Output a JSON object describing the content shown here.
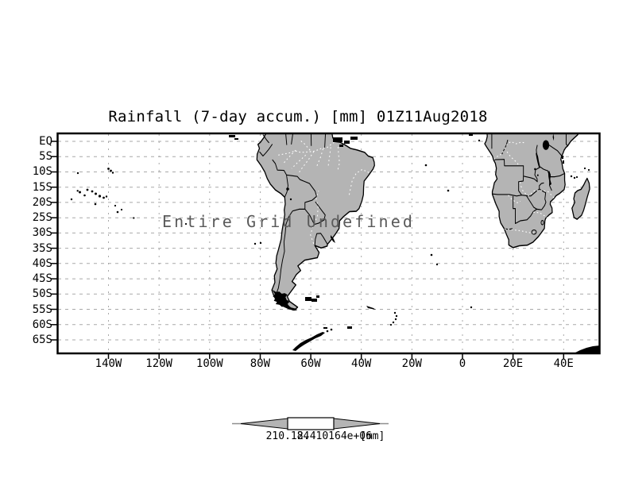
{
  "header": {
    "title": "Rainfall (7-day accum.) [mm] 01Z11Aug2018"
  },
  "map": {
    "message": "Entire Grid Undefined"
  },
  "axes": {
    "lat_labels": [
      "EQ",
      "5S",
      "10S",
      "15S",
      "20S",
      "25S",
      "30S",
      "35S",
      "40S",
      "45S",
      "50S",
      "55S",
      "60S",
      "65S"
    ],
    "lon_labels": [
      "140W",
      "120W",
      "100W",
      "80W",
      "60W",
      "40W",
      "20W",
      "0",
      "20E",
      "40E"
    ]
  },
  "colorbar": {
    "left_label": "210.184",
    "right_label": "2.410164e+06",
    "unit": "[mm]"
  },
  "colors": {
    "land": "#b4b4b4",
    "gridline": "#a9a9a9",
    "frame": "#000000",
    "message_text": "#5a5a5a",
    "background": "#ffffff"
  }
}
